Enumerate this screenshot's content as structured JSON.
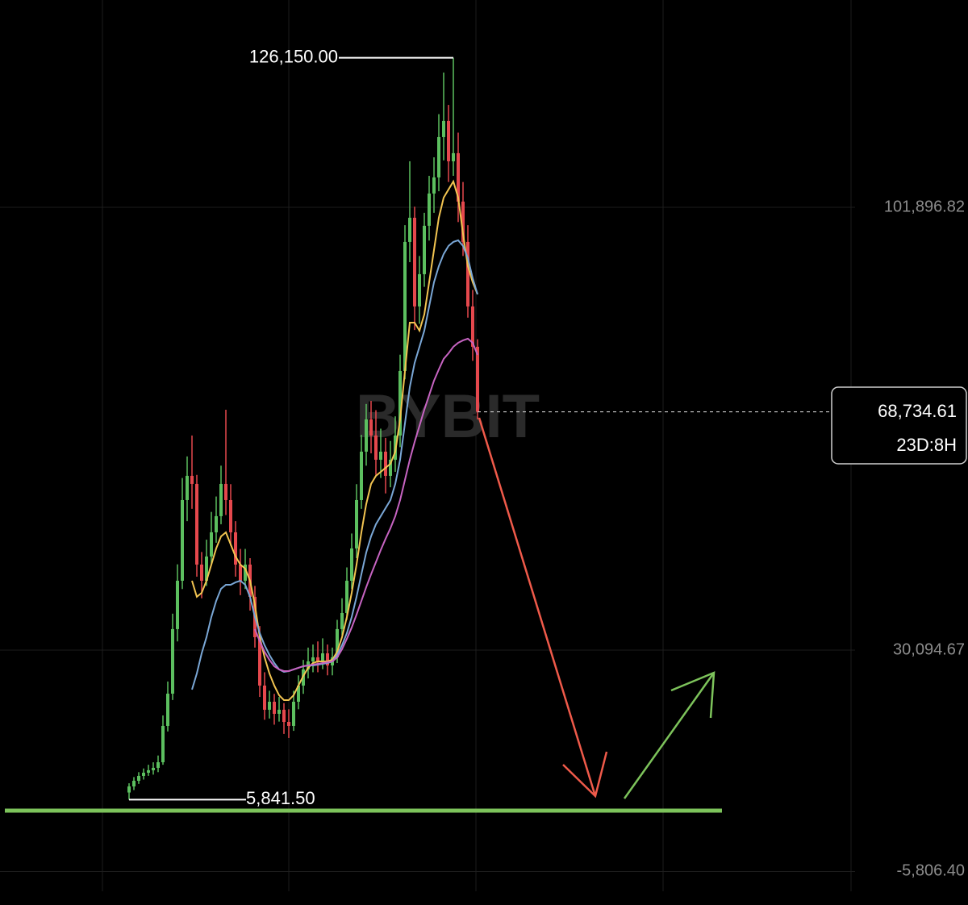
{
  "chart_data": {
    "type": "candlestick",
    "ylim": [
      -11240,
      135510
    ],
    "yticks": [
      {
        "value": -5806.4,
        "label": "-5,806.40"
      },
      {
        "value": 30094.67,
        "label": "30,094.67"
      },
      {
        "value": 101896.82,
        "label": "101,896.82"
      }
    ],
    "grid": true,
    "up_color": "#5cbf5f",
    "down_color": "#e5484d",
    "watermark": "BYBIT",
    "max_marker": {
      "value": 126150,
      "label": "126,150.00"
    },
    "min_marker": {
      "value": 5841.5,
      "label": "5,841.50"
    },
    "last_price": {
      "value": 68734.61,
      "label": "68,734.61"
    },
    "countdown": "23D:8H",
    "candles": [
      [
        7000,
        8500,
        5841.5,
        7990
      ],
      [
        7990,
        9500,
        7400,
        8900
      ],
      [
        8900,
        10300,
        8400,
        9690
      ],
      [
        9690,
        10900,
        9100,
        10210
      ],
      [
        10210,
        11500,
        9700,
        10610
      ],
      [
        10610,
        11900,
        9900,
        11000
      ],
      [
        11000,
        13000,
        10300,
        11910
      ],
      [
        11910,
        19500,
        11500,
        17800
      ],
      [
        17800,
        25000,
        16900,
        23030
      ],
      [
        23030,
        36000,
        22000,
        33500
      ],
      [
        33500,
        44000,
        31500,
        41340
      ],
      [
        41340,
        58000,
        40000,
        54420
      ],
      [
        54420,
        61500,
        51000,
        58350
      ],
      [
        58350,
        64890,
        53000,
        57040
      ],
      [
        57040,
        58500,
        42000,
        43960
      ],
      [
        43960,
        46000,
        38500,
        41340
      ],
      [
        41340,
        48000,
        40500,
        45270
      ],
      [
        45270,
        52500,
        44000,
        49190
      ],
      [
        49190,
        55000,
        47500,
        51810
      ],
      [
        51810,
        60000,
        50500,
        57040
      ],
      [
        57040,
        69070,
        52000,
        54420
      ],
      [
        54420,
        57000,
        47000,
        49190
      ],
      [
        49190,
        51000,
        42000,
        43960
      ],
      [
        43960,
        46500,
        39000,
        41340
      ],
      [
        41340,
        46500,
        40000,
        43960
      ],
      [
        43960,
        45000,
        36500,
        38730
      ],
      [
        38730,
        40500,
        30500,
        32190
      ],
      [
        32190,
        34000,
        22500,
        24340
      ],
      [
        24340,
        26500,
        18800,
        20420
      ],
      [
        20420,
        23500,
        19000,
        21720
      ],
      [
        21720,
        23000,
        18000,
        19760
      ],
      [
        19760,
        22500,
        18500,
        20420
      ],
      [
        20420,
        21500,
        16500,
        18450
      ],
      [
        18450,
        20500,
        15840,
        17800
      ],
      [
        17800,
        23500,
        17000,
        21720
      ],
      [
        21720,
        26000,
        20500,
        24340
      ],
      [
        24340,
        28500,
        23000,
        26960
      ],
      [
        26960,
        30500,
        25500,
        28260
      ],
      [
        28260,
        31000,
        26500,
        28920
      ],
      [
        28920,
        31500,
        26500,
        28260
      ],
      [
        28260,
        32000,
        27000,
        29570
      ],
      [
        29570,
        31000,
        26000,
        27610
      ],
      [
        27610,
        30500,
        26000,
        28920
      ],
      [
        28920,
        35000,
        28000,
        33500
      ],
      [
        33500,
        38500,
        32500,
        36110
      ],
      [
        36110,
        43500,
        35000,
        41340
      ],
      [
        41340,
        49000,
        40000,
        46580
      ],
      [
        46580,
        57000,
        45000,
        54420
      ],
      [
        54420,
        65000,
        53000,
        62270
      ],
      [
        62270,
        70000,
        60000,
        67500
      ],
      [
        67500,
        70500,
        62000,
        64890
      ],
      [
        64890,
        69000,
        58500,
        60960
      ],
      [
        60960,
        66000,
        58000,
        62270
      ],
      [
        62270,
        64500,
        55500,
        58350
      ],
      [
        58350,
        64000,
        56500,
        60960
      ],
      [
        60960,
        68000,
        59000,
        64890
      ],
      [
        64890,
        78000,
        63000,
        75350
      ],
      [
        75350,
        99000,
        74000,
        96280
      ],
      [
        96280,
        109360,
        93000,
        100200
      ],
      [
        100200,
        102000,
        82000,
        85820
      ],
      [
        85820,
        94000,
        83000,
        91050
      ],
      [
        91050,
        101000,
        89000,
        98900
      ],
      [
        98900,
        107000,
        96500,
        104130
      ],
      [
        104130,
        110000,
        101000,
        106740
      ],
      [
        106740,
        117000,
        104500,
        113280
      ],
      [
        113280,
        123750,
        109500,
        115900
      ],
      [
        115900,
        118500,
        106000,
        109360
      ],
      [
        109360,
        126150,
        107000,
        110670
      ],
      [
        110670,
        114000,
        99500,
        102820
      ],
      [
        102820,
        106000,
        94000,
        96280
      ],
      [
        96280,
        99000,
        84000,
        85820
      ],
      [
        85820,
        88500,
        77000,
        79280
      ],
      [
        79280,
        80500,
        67500,
        68734.61
      ]
    ],
    "series": [
      {
        "color": "#f2c451",
        "values": [
          null,
          null,
          null,
          null,
          null,
          null,
          null,
          null,
          null,
          null,
          null,
          null,
          null,
          41340,
          38730,
          39380,
          41340,
          43960,
          46580,
          48540,
          49190,
          47230,
          45270,
          43960,
          43310,
          41340,
          37420,
          32190,
          28920,
          26300,
          24340,
          22770,
          21980,
          21980,
          22770,
          24340,
          25910,
          27220,
          28000,
          28260,
          28260,
          28260,
          28520,
          29830,
          32190,
          35460,
          39380,
          43960,
          49190,
          53770,
          57040,
          58350,
          59000,
          59650,
          60310,
          62270,
          67500,
          75350,
          83200,
          83200,
          81890,
          84510,
          89740,
          94970,
          100200,
          103470,
          104780,
          106090,
          103470,
          97590,
          92350,
          89740,
          87780
        ]
      },
      {
        "color": "#7aa7d6",
        "values": [
          null,
          null,
          null,
          null,
          null,
          null,
          null,
          null,
          null,
          null,
          null,
          null,
          null,
          23690,
          26300,
          29570,
          32190,
          35460,
          38070,
          40040,
          40690,
          40690,
          41080,
          41340,
          40690,
          38730,
          35460,
          32840,
          30880,
          29310,
          28000,
          26960,
          26560,
          26690,
          26960,
          27220,
          27480,
          27610,
          27610,
          27740,
          27870,
          28000,
          28260,
          29310,
          30880,
          32840,
          35460,
          38730,
          42390,
          45920,
          48540,
          50500,
          51810,
          53120,
          54420,
          57040,
          60960,
          66850,
          72740,
          76660,
          79280,
          81890,
          85820,
          89740,
          92350,
          94320,
          95630,
          96280,
          96540,
          95630,
          93670,
          90390,
          87780
        ]
      },
      {
        "color": "#c764c2",
        "values": [
          null,
          null,
          null,
          null,
          null,
          null,
          null,
          null,
          null,
          null,
          null,
          null,
          null,
          null,
          null,
          null,
          null,
          null,
          null,
          null,
          null,
          null,
          null,
          null,
          null,
          null,
          33500,
          31530,
          29830,
          28520,
          27480,
          26960,
          26690,
          26690,
          26960,
          27220,
          27480,
          27610,
          27740,
          27870,
          28000,
          28130,
          28260,
          28920,
          30230,
          31930,
          33760,
          35850,
          38070,
          40300,
          42390,
          44350,
          46320,
          48150,
          49850,
          51810,
          54420,
          57690,
          60960,
          63840,
          66460,
          69070,
          71430,
          73780,
          75610,
          77310,
          78220,
          79280,
          79930,
          80320,
          80590,
          79930,
          77960
        ]
      }
    ]
  }
}
